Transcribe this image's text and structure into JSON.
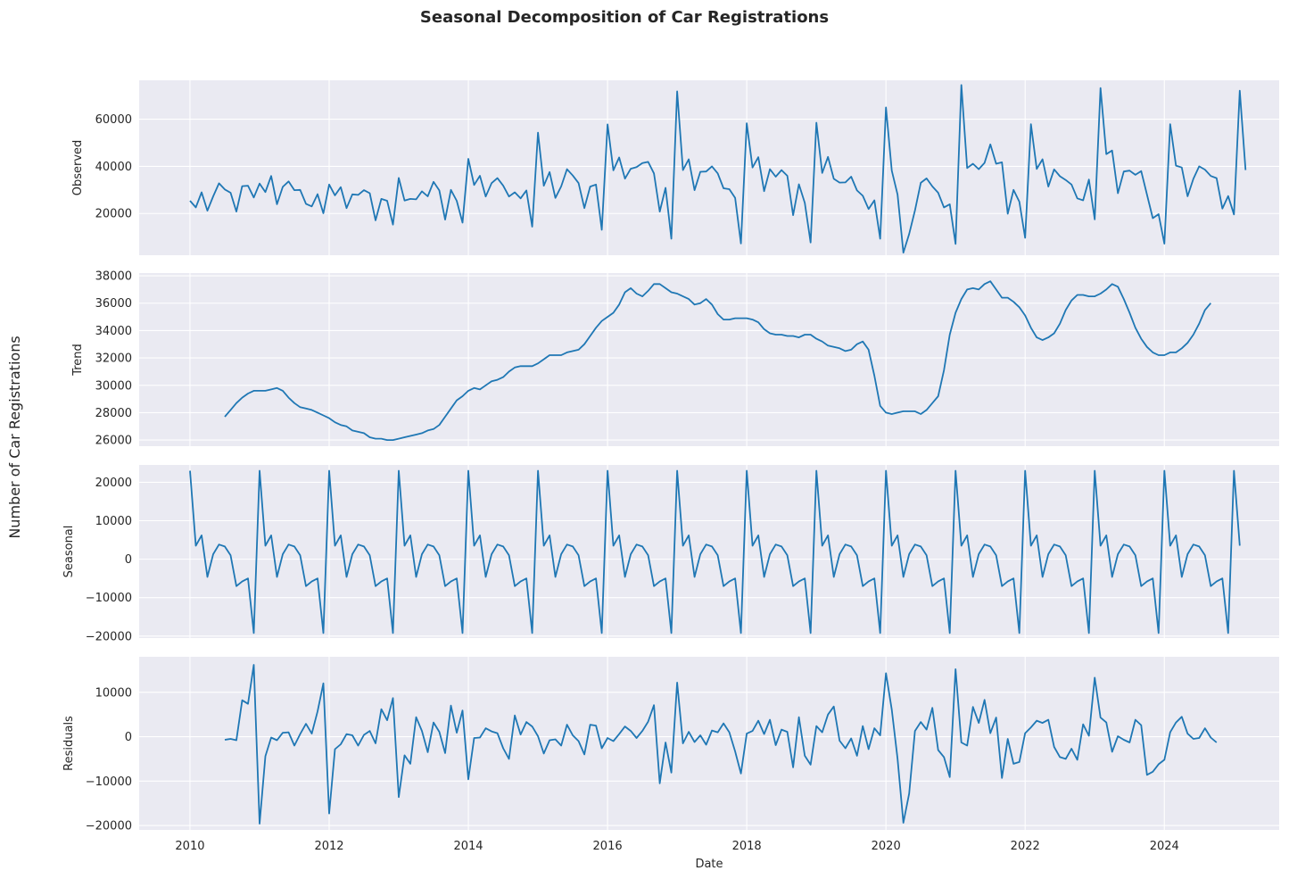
{
  "chart_data": {
    "type": "line",
    "title": "Seasonal Decomposition of Car Registrations",
    "ylabel": "Number of Car Registrations",
    "xlabel": "Date",
    "start": "2010-01",
    "x_ticks": [
      "2010",
      "2012",
      "2014",
      "2016",
      "2018",
      "2020",
      "2022",
      "2024"
    ],
    "x_range": [
      2009.27,
      2025.65
    ],
    "line_color": "#1f77b4",
    "grid": true,
    "panels": [
      {
        "name": "Observed",
        "ylim": [
          2300,
          76500
        ],
        "yticks": [
          20000,
          40000,
          60000
        ],
        "ytick_labels": [
          "20000",
          "40000",
          "60000"
        ],
        "values": [
          25400,
          22600,
          29000,
          21200,
          27300,
          32800,
          30200,
          28800,
          20800,
          31600,
          31800,
          26800,
          32700,
          29100,
          35900,
          23900,
          31300,
          33600,
          29900,
          30000,
          24100,
          23000,
          28200,
          20100,
          32300,
          27700,
          31200,
          22300,
          28100,
          27900,
          29900,
          28600,
          17100,
          26200,
          25400,
          15300,
          35100,
          25500,
          26200,
          26000,
          29400,
          27300,
          33400,
          29800,
          17400,
          30000,
          25400,
          16100,
          43200,
          32100,
          36000,
          27200,
          32900,
          35000,
          31800,
          27200,
          29000,
          26400,
          29800,
          14400,
          54300,
          31800,
          37600,
          26600,
          31500,
          38800,
          36100,
          32900,
          22300,
          31400,
          32300,
          13100,
          57800,
          38300,
          43800,
          34800,
          39000,
          39700,
          41400,
          41900,
          37000,
          20800,
          30900,
          9300,
          71800,
          38400,
          43000,
          29900,
          37700,
          37800,
          40000,
          37000,
          30700,
          30300,
          26600,
          7300,
          58300,
          39500,
          43900,
          29500,
          38800,
          35600,
          38400,
          36000,
          19300,
          32400,
          24500,
          7700,
          58500,
          37200,
          44000,
          34700,
          33100,
          33200,
          35600,
          29800,
          27500,
          21900,
          25600,
          9300,
          65000,
          38200,
          28000,
          3400,
          11300,
          21300,
          33000,
          34900,
          31500,
          28800,
          22600,
          23900,
          7100,
          74500,
          39300,
          41100,
          38800,
          41500,
          49300,
          41100,
          41700,
          19900,
          30000,
          25000,
          9700,
          57900,
          38900,
          43000,
          31400,
          38700,
          35800,
          34200,
          32300,
          26400,
          25600,
          34400,
          17500,
          73200,
          45200,
          46700,
          28600,
          37800,
          38200,
          36400,
          38000,
          28000,
          18000,
          19700,
          7200,
          57900,
          40300,
          39500,
          27300,
          34700,
          40000,
          38600,
          35900,
          35000,
          22100,
          27400,
          19600,
          72100,
          38400
        ]
      },
      {
        "name": "Trend",
        "ylim": [
          25550,
          38200
        ],
        "yticks": [
          26000,
          28000,
          30000,
          32000,
          34000,
          36000,
          38000
        ],
        "ytick_labels": [
          "26000",
          "28000",
          "30000",
          "32000",
          "34000",
          "36000",
          "38000"
        ],
        "offset": 6,
        "values": [
          27700,
          28200,
          28700,
          29100,
          29400,
          29600,
          29600,
          29600,
          29700,
          29800,
          29600,
          29100,
          28700,
          28400,
          28300,
          28200,
          28000,
          27800,
          27600,
          27300,
          27100,
          27000,
          26700,
          26600,
          26500,
          26200,
          26100,
          26100,
          26000,
          26000,
          26100,
          26200,
          26300,
          26400,
          26500,
          26700,
          26800,
          27100,
          27700,
          28300,
          28900,
          29200,
          29600,
          29800,
          29700,
          30000,
          30300,
          30400,
          30600,
          31000,
          31300,
          31400,
          31400,
          31400,
          31600,
          31900,
          32200,
          32200,
          32200,
          32400,
          32500,
          32600,
          33000,
          33600,
          34200,
          34700,
          35000,
          35300,
          35900,
          36800,
          37100,
          36700,
          36500,
          36900,
          37400,
          37400,
          37100,
          36800,
          36700,
          36500,
          36300,
          35900,
          36000,
          36300,
          35900,
          35200,
          34800,
          34800,
          34900,
          34900,
          34900,
          34800,
          34600,
          34100,
          33800,
          33700,
          33700,
          33600,
          33600,
          33500,
          33700,
          33700,
          33400,
          33200,
          32900,
          32800,
          32700,
          32500,
          32600,
          33000,
          33200,
          32600,
          30700,
          28500,
          28000,
          27900,
          28000,
          28100,
          28100,
          28100,
          27900,
          28200,
          28700,
          29200,
          31100,
          33700,
          35300,
          36300,
          37000,
          37100,
          37000,
          37400,
          37600,
          37000,
          36400,
          36400,
          36100,
          35700,
          35100,
          34200,
          33500,
          33300,
          33500,
          33800,
          34500,
          35500,
          36200,
          36600,
          36600,
          36500,
          36500,
          36700,
          37000,
          37400,
          37200,
          36300,
          35300,
          34200,
          33400,
          32800,
          32400,
          32200,
          32200,
          32400,
          32400,
          32700,
          33100,
          33700,
          34500,
          35500,
          36000
        ]
      },
      {
        "name": "Seasonal",
        "ylim": [
          -20500,
          24500
        ],
        "yticks": [
          -20000,
          -10000,
          0,
          10000,
          20000
        ],
        "ytick_labels": [
          "−20000",
          "−10000",
          "0",
          "10000",
          "20000"
        ],
        "pattern": [
          23000,
          3500,
          6200,
          -4600,
          1300,
          3800,
          3300,
          1000,
          -7000,
          -5800,
          -5000,
          -19200
        ],
        "values": [
          23000,
          3500,
          6200,
          -4600,
          1300,
          3800,
          3300,
          1000,
          -7000,
          -5800,
          -5000,
          -19200,
          23000,
          3500,
          6200,
          -4600,
          1300,
          3800,
          3300,
          1000,
          -7000,
          -5800,
          -5000,
          -19200,
          23000,
          3500,
          6200,
          -4600,
          1300,
          3800,
          3300,
          1000,
          -7000,
          -5800,
          -5000,
          -19200,
          23000,
          3500,
          6200,
          -4600,
          1300,
          3800,
          3300,
          1000,
          -7000,
          -5800,
          -5000,
          -19200,
          23000,
          3500,
          6200,
          -4600,
          1300,
          3800,
          3300,
          1000,
          -7000,
          -5800,
          -5000,
          -19200,
          23000,
          3500,
          6200,
          -4600,
          1300,
          3800,
          3300,
          1000,
          -7000,
          -5800,
          -5000,
          -19200,
          23000,
          3500,
          6200,
          -4600,
          1300,
          3800,
          3300,
          1000,
          -7000,
          -5800,
          -5000,
          -19200,
          23000,
          3500,
          6200,
          -4600,
          1300,
          3800,
          3300,
          1000,
          -7000,
          -5800,
          -5000,
          -19200,
          23000,
          3500,
          6200,
          -4600,
          1300,
          3800,
          3300,
          1000,
          -7000,
          -5800,
          -5000,
          -19200,
          23000,
          3500,
          6200,
          -4600,
          1300,
          3800,
          3300,
          1000,
          -7000,
          -5800,
          -5000,
          -19200,
          23000,
          3500,
          6200,
          -4600,
          1300,
          3800,
          3300,
          1000,
          -7000,
          -5800,
          -5000,
          -19200,
          23000,
          3500,
          6200,
          -4600,
          1300,
          3800,
          3300,
          1000,
          -7000,
          -5800,
          -5000,
          -19200,
          23000,
          3500,
          6200,
          -4600,
          1300,
          3800,
          3300,
          1000,
          -7000,
          -5800,
          -5000,
          -19200,
          23000,
          3500,
          6200,
          -4600,
          1300,
          3800,
          3300,
          1000,
          -7000,
          -5800,
          -5000,
          -19200,
          23000,
          3500,
          6200,
          -4600,
          1300,
          3800,
          3300,
          1000,
          -7000,
          -5800,
          -5000,
          -19200,
          23000,
          3500
        ]
      },
      {
        "name": "Residuals",
        "ylim": [
          -21000,
          18000
        ],
        "yticks": [
          -20000,
          -10000,
          0,
          10000
        ],
        "ytick_labels": [
          "−20000",
          "−10000",
          "0",
          "10000"
        ],
        "offset": 6,
        "values": [
          -700,
          -500,
          -800,
          8200,
          7400,
          16200,
          -19600,
          -4400,
          -200,
          -800,
          900,
          1000,
          -2000,
          600,
          2900,
          700,
          5700,
          12000,
          -17300,
          -2800,
          -1700,
          600,
          300,
          -2000,
          400,
          1300,
          -1500,
          6200,
          3700,
          8700,
          -13600,
          -4200,
          -6100,
          4400,
          1300,
          -3500,
          3200,
          1100,
          -3700,
          7000,
          900,
          5900,
          -9600,
          -300,
          -200,
          1900,
          1200,
          800,
          -2600,
          -5000,
          4800,
          500,
          3300,
          2300,
          100,
          -3800,
          -800,
          -600,
          -2000,
          2700,
          300,
          -1000,
          -4000,
          2700,
          2500,
          -2600,
          -300,
          -1000,
          600,
          2300,
          1300,
          -300,
          1300,
          3400,
          7100,
          -10500,
          -1300,
          -8100,
          12200,
          -1500,
          1100,
          -1200,
          300,
          -1800,
          1400,
          1000,
          3000,
          1000,
          -3300,
          -8300,
          700,
          1300,
          3600,
          600,
          3800,
          -1900,
          1600,
          1100,
          -6900,
          4400,
          -4300,
          -6300,
          2400,
          1000,
          5000,
          6800,
          -900,
          -2600,
          -400,
          -4300,
          2400,
          -2800,
          1900,
          300,
          14300,
          6100,
          -5000,
          -19400,
          -12800,
          1300,
          3300,
          1600,
          6500,
          -3000,
          -4600,
          -9100,
          15200,
          -1300,
          -2000,
          6700,
          3100,
          8300,
          800,
          4300,
          -9300,
          -500,
          -6100,
          -5700,
          800,
          2100,
          3600,
          3100,
          3800,
          -2300,
          -4600,
          -5000,
          -2700,
          -5200,
          2800,
          200,
          13300,
          4300,
          3200,
          -3400,
          100,
          -700,
          -1300,
          3800,
          2600,
          -8600,
          -7900,
          -6200,
          -5200,
          1000,
          3200,
          4500,
          700,
          -500,
          -300,
          1900,
          -200,
          -1300
        ]
      }
    ]
  }
}
